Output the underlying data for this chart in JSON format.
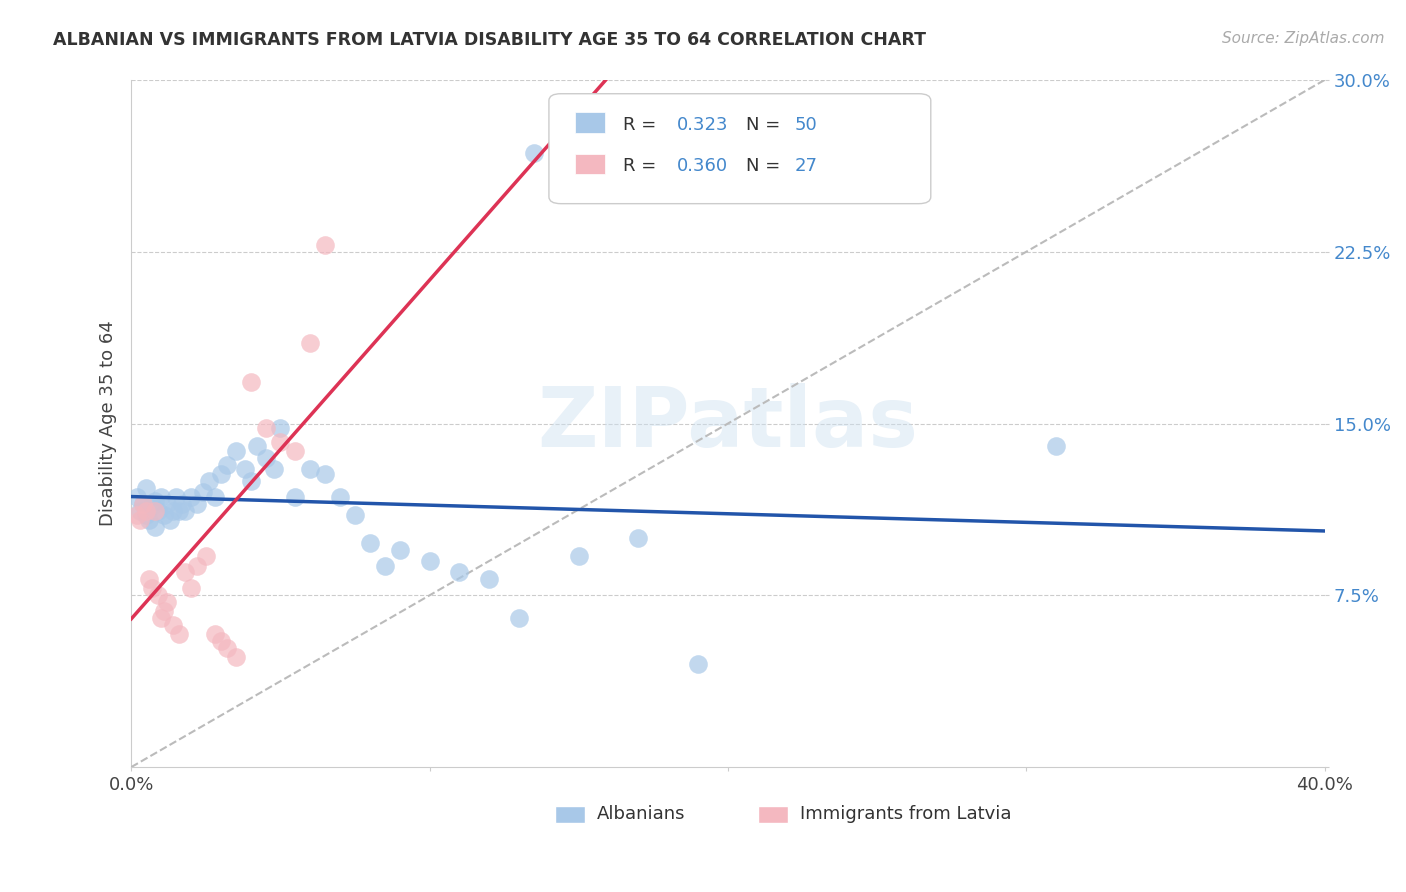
{
  "title": "ALBANIAN VS IMMIGRANTS FROM LATVIA DISABILITY AGE 35 TO 64 CORRELATION CHART",
  "source": "Source: ZipAtlas.com",
  "ylabel": "Disability Age 35 to 64",
  "xmin": 0.0,
  "xmax": 0.4,
  "ymin": 0.0,
  "ymax": 0.3,
  "blue_color": "#a8c8e8",
  "pink_color": "#f4b8c0",
  "blue_line_color": "#2255aa",
  "pink_line_color": "#dd3355",
  "blue_text_color": "#4488cc",
  "watermark": "ZIPatlas",
  "albanians_x": [
    0.002,
    0.003,
    0.004,
    0.005,
    0.005,
    0.006,
    0.007,
    0.008,
    0.008,
    0.009,
    0.01,
    0.011,
    0.012,
    0.013,
    0.014,
    0.015,
    0.016,
    0.017,
    0.018,
    0.02,
    0.022,
    0.024,
    0.026,
    0.028,
    0.03,
    0.032,
    0.035,
    0.038,
    0.04,
    0.042,
    0.045,
    0.048,
    0.05,
    0.055,
    0.06,
    0.065,
    0.07,
    0.075,
    0.08,
    0.085,
    0.09,
    0.1,
    0.11,
    0.12,
    0.13,
    0.15,
    0.17,
    0.19,
    0.31,
    0.135
  ],
  "albanians_y": [
    0.118,
    0.112,
    0.115,
    0.11,
    0.122,
    0.108,
    0.114,
    0.116,
    0.105,
    0.112,
    0.118,
    0.11,
    0.115,
    0.108,
    0.112,
    0.118,
    0.112,
    0.115,
    0.112,
    0.118,
    0.115,
    0.12,
    0.125,
    0.118,
    0.128,
    0.132,
    0.138,
    0.13,
    0.125,
    0.14,
    0.135,
    0.13,
    0.148,
    0.118,
    0.13,
    0.128,
    0.118,
    0.11,
    0.098,
    0.088,
    0.095,
    0.09,
    0.085,
    0.082,
    0.065,
    0.092,
    0.1,
    0.045,
    0.14,
    0.268
  ],
  "latvia_x": [
    0.002,
    0.003,
    0.004,
    0.005,
    0.006,
    0.007,
    0.008,
    0.009,
    0.01,
    0.011,
    0.012,
    0.014,
    0.016,
    0.018,
    0.02,
    0.022,
    0.025,
    0.028,
    0.03,
    0.032,
    0.035,
    0.04,
    0.045,
    0.05,
    0.055,
    0.06,
    0.065
  ],
  "latvia_y": [
    0.11,
    0.108,
    0.115,
    0.112,
    0.082,
    0.078,
    0.112,
    0.075,
    0.065,
    0.068,
    0.072,
    0.062,
    0.058,
    0.085,
    0.078,
    0.088,
    0.092,
    0.058,
    0.055,
    0.052,
    0.048,
    0.168,
    0.148,
    0.142,
    0.138,
    0.185,
    0.228
  ]
}
